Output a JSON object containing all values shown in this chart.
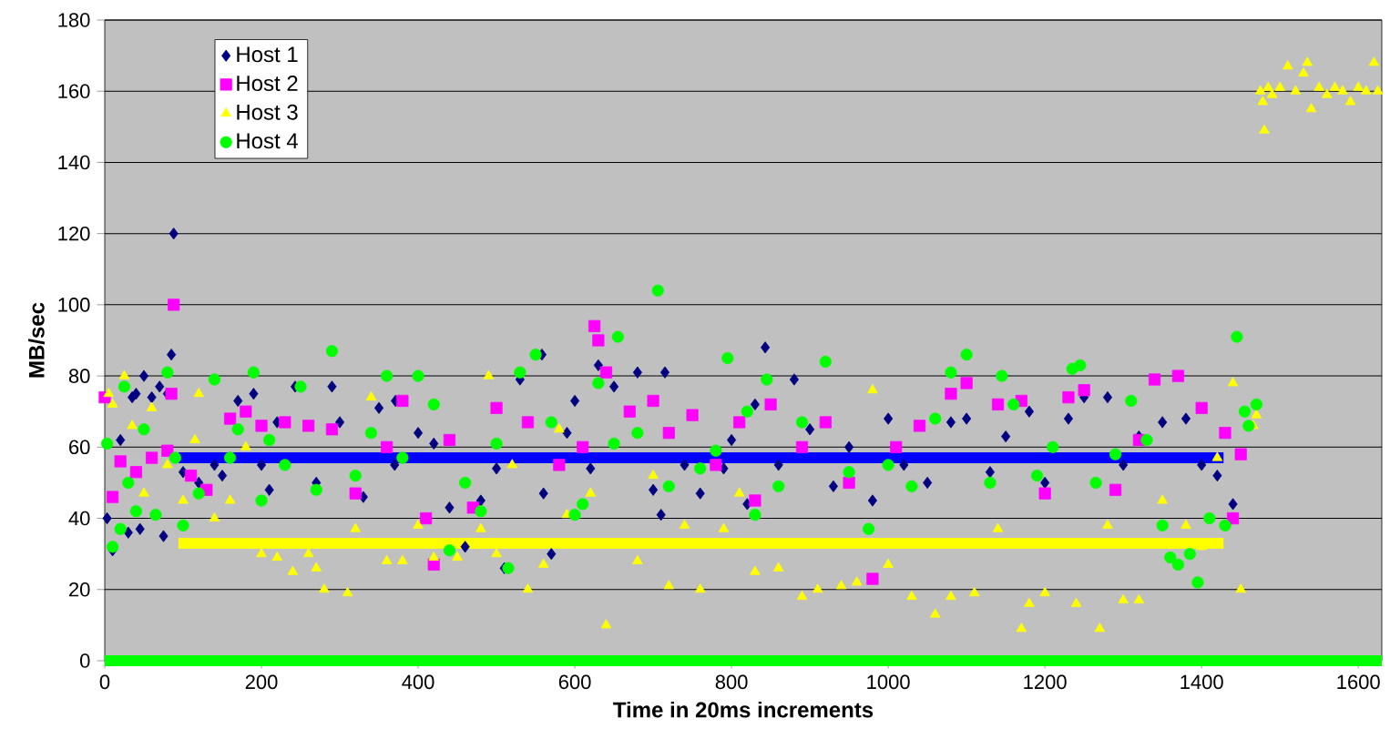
{
  "chart_data": {
    "type": "scatter",
    "xlabel": "Time in 20ms increments",
    "ylabel": "MB/sec",
    "xlim": [
      0,
      1630
    ],
    "ylim": [
      0,
      180
    ],
    "xticks": [
      0,
      200,
      400,
      600,
      800,
      1000,
      1200,
      1400,
      1600
    ],
    "yticks": [
      0,
      20,
      40,
      60,
      80,
      100,
      120,
      140,
      160,
      180
    ],
    "grid": "y",
    "legend": "top left",
    "series": [
      {
        "type": "line",
        "color": "#0000ff",
        "marker": "none",
        "x": [
          94,
          1428
        ],
        "values": [
          57,
          57
        ]
      },
      {
        "type": "line",
        "color": "#ffff00",
        "marker": "none",
        "x": [
          94,
          1428
        ],
        "values": [
          33,
          33
        ]
      },
      {
        "name": "Host 1",
        "color": "#000080",
        "marker": "diamond",
        "x": [
          3,
          10,
          20,
          30,
          35,
          40,
          45,
          50,
          60,
          70,
          75,
          80,
          85,
          88,
          100,
          120,
          140,
          150,
          170,
          190,
          200,
          210,
          220,
          243,
          270,
          290,
          300,
          330,
          350,
          370,
          371,
          400,
          420,
          440,
          460,
          480,
          500,
          510,
          530,
          558,
          560,
          570,
          590,
          600,
          620,
          630,
          650,
          680,
          700,
          710,
          715,
          740,
          760,
          790,
          800,
          820,
          830,
          843,
          860,
          880,
          900,
          930,
          950,
          980,
          1000,
          1020,
          1050,
          1080,
          1100,
          1130,
          1150,
          1180,
          1200,
          1230,
          1250,
          1280,
          1300,
          1320,
          1350,
          1380,
          1400,
          1420,
          1440
        ],
        "values": [
          40,
          31,
          62,
          36,
          74,
          75,
          37,
          80,
          74,
          77,
          35,
          75,
          86,
          120,
          53,
          50,
          55,
          52,
          73,
          75,
          55,
          48,
          67,
          77,
          50,
          77,
          67,
          46,
          71,
          55,
          73,
          64,
          61,
          43,
          32,
          45,
          54,
          26,
          79,
          86,
          47,
          30,
          64,
          73,
          54,
          83,
          77,
          81,
          48,
          41,
          81,
          55,
          47,
          54,
          62,
          44,
          72,
          88,
          55,
          79,
          65,
          49,
          60,
          45,
          68,
          55,
          50,
          67,
          68,
          53,
          63,
          70,
          50,
          68,
          74,
          74,
          55,
          63,
          67,
          68,
          55,
          52,
          44
        ]
      },
      {
        "name": "Host 2",
        "color": "#ff00ff",
        "marker": "square",
        "x": [
          0,
          10,
          20,
          40,
          60,
          80,
          85,
          88,
          110,
          130,
          160,
          180,
          200,
          230,
          260,
          290,
          320,
          360,
          380,
          410,
          420,
          440,
          470,
          500,
          540,
          580,
          610,
          625,
          630,
          640,
          670,
          700,
          720,
          750,
          780,
          810,
          830,
          850,
          890,
          920,
          950,
          980,
          1010,
          1040,
          1080,
          1100,
          1140,
          1170,
          1200,
          1230,
          1250,
          1290,
          1320,
          1340,
          1370,
          1400,
          1430,
          1450,
          1440
        ],
        "values": [
          74,
          46,
          56,
          53,
          57,
          59,
          75,
          100,
          52,
          48,
          68,
          70,
          66,
          67,
          66,
          65,
          47,
          60,
          73,
          40,
          27,
          62,
          43,
          71,
          67,
          55,
          60,
          94,
          90,
          81,
          70,
          73,
          64,
          69,
          55,
          67,
          45,
          72,
          60,
          67,
          50,
          23,
          60,
          66,
          75,
          78,
          72,
          73,
          47,
          74,
          76,
          48,
          62,
          79,
          80,
          71,
          64,
          58,
          40
        ]
      },
      {
        "name": "Host 3",
        "color": "#ffff00",
        "marker": "triangle",
        "x": [
          5,
          10,
          25,
          35,
          50,
          60,
          80,
          100,
          115,
          120,
          140,
          160,
          180,
          200,
          220,
          240,
          260,
          270,
          280,
          310,
          320,
          340,
          360,
          380,
          400,
          420,
          450,
          480,
          490,
          500,
          520,
          540,
          560,
          580,
          590,
          620,
          640,
          680,
          700,
          720,
          740,
          760,
          790,
          810,
          830,
          860,
          890,
          910,
          940,
          960,
          980,
          1000,
          1030,
          1060,
          1080,
          1110,
          1140,
          1170,
          1180,
          1200,
          1240,
          1270,
          1280,
          1300,
          1320,
          1350,
          1380,
          1400,
          1420,
          1440,
          1450,
          1466,
          1470,
          1475,
          1478,
          1480,
          1485,
          1490,
          1500,
          1510,
          1520,
          1530,
          1535,
          1540,
          1550,
          1560,
          1570,
          1580,
          1590,
          1600,
          1610,
          1620,
          1625
        ],
        "values": [
          75,
          72,
          80,
          66,
          47,
          71,
          55,
          45,
          62,
          75,
          40,
          45,
          60,
          30,
          29,
          25,
          30,
          26,
          20,
          19,
          37,
          74,
          28,
          28,
          38,
          29,
          29,
          37,
          80,
          30,
          55,
          20,
          27,
          65,
          41,
          47,
          10,
          28,
          52,
          21,
          38,
          20,
          37,
          47,
          25,
          26,
          18,
          20,
          21,
          22,
          76,
          27,
          18,
          13,
          18,
          19,
          37,
          9,
          16,
          19,
          16,
          9,
          38,
          17,
          17,
          45,
          38,
          32,
          57,
          78,
          20,
          66,
          69,
          160,
          157,
          149,
          161,
          159,
          161,
          167,
          160,
          165,
          168,
          155,
          161,
          159,
          161,
          160,
          157,
          161,
          160,
          168,
          160
        ]
      },
      {
        "name": "Host 4",
        "color": "#00ff00",
        "marker": "circle",
        "x": [
          3,
          10,
          20,
          25,
          30,
          40,
          50,
          65,
          80,
          90,
          100,
          120,
          140,
          160,
          170,
          190,
          200,
          210,
          230,
          250,
          270,
          290,
          320,
          340,
          360,
          380,
          400,
          420,
          440,
          460,
          480,
          500,
          515,
          530,
          550,
          570,
          600,
          610,
          630,
          650,
          655,
          680,
          706,
          720,
          760,
          780,
          795,
          820,
          830,
          845,
          860,
          890,
          920,
          950,
          975,
          1000,
          1030,
          1060,
          1080,
          1100,
          1130,
          1145,
          1160,
          1190,
          1210,
          1235,
          1245,
          1265,
          1290,
          1310,
          1330,
          1350,
          1360,
          1370,
          1385,
          1395,
          1410,
          1430,
          1445,
          1455,
          1460,
          1470
        ],
        "values": [
          61,
          32,
          37,
          77,
          50,
          42,
          65,
          41,
          81,
          57,
          38,
          47,
          79,
          57,
          65,
          81,
          45,
          62,
          55,
          77,
          48,
          87,
          52,
          64,
          80,
          57,
          80,
          72,
          31,
          50,
          42,
          61,
          26,
          81,
          86,
          67,
          41,
          44,
          78,
          61,
          91,
          64,
          104,
          49,
          54,
          59,
          85,
          70,
          41,
          79,
          49,
          67,
          84,
          53,
          37,
          55,
          49,
          68,
          81,
          86,
          50,
          80,
          72,
          52,
          60,
          82,
          83,
          50,
          58,
          73,
          62,
          38,
          29,
          27,
          30,
          22,
          40,
          38,
          91,
          70,
          66,
          72
        ]
      },
      {
        "type": "line",
        "color": "#00ff00",
        "marker": "none",
        "x": [
          0,
          1630
        ],
        "values": [
          0,
          0
        ]
      }
    ]
  }
}
